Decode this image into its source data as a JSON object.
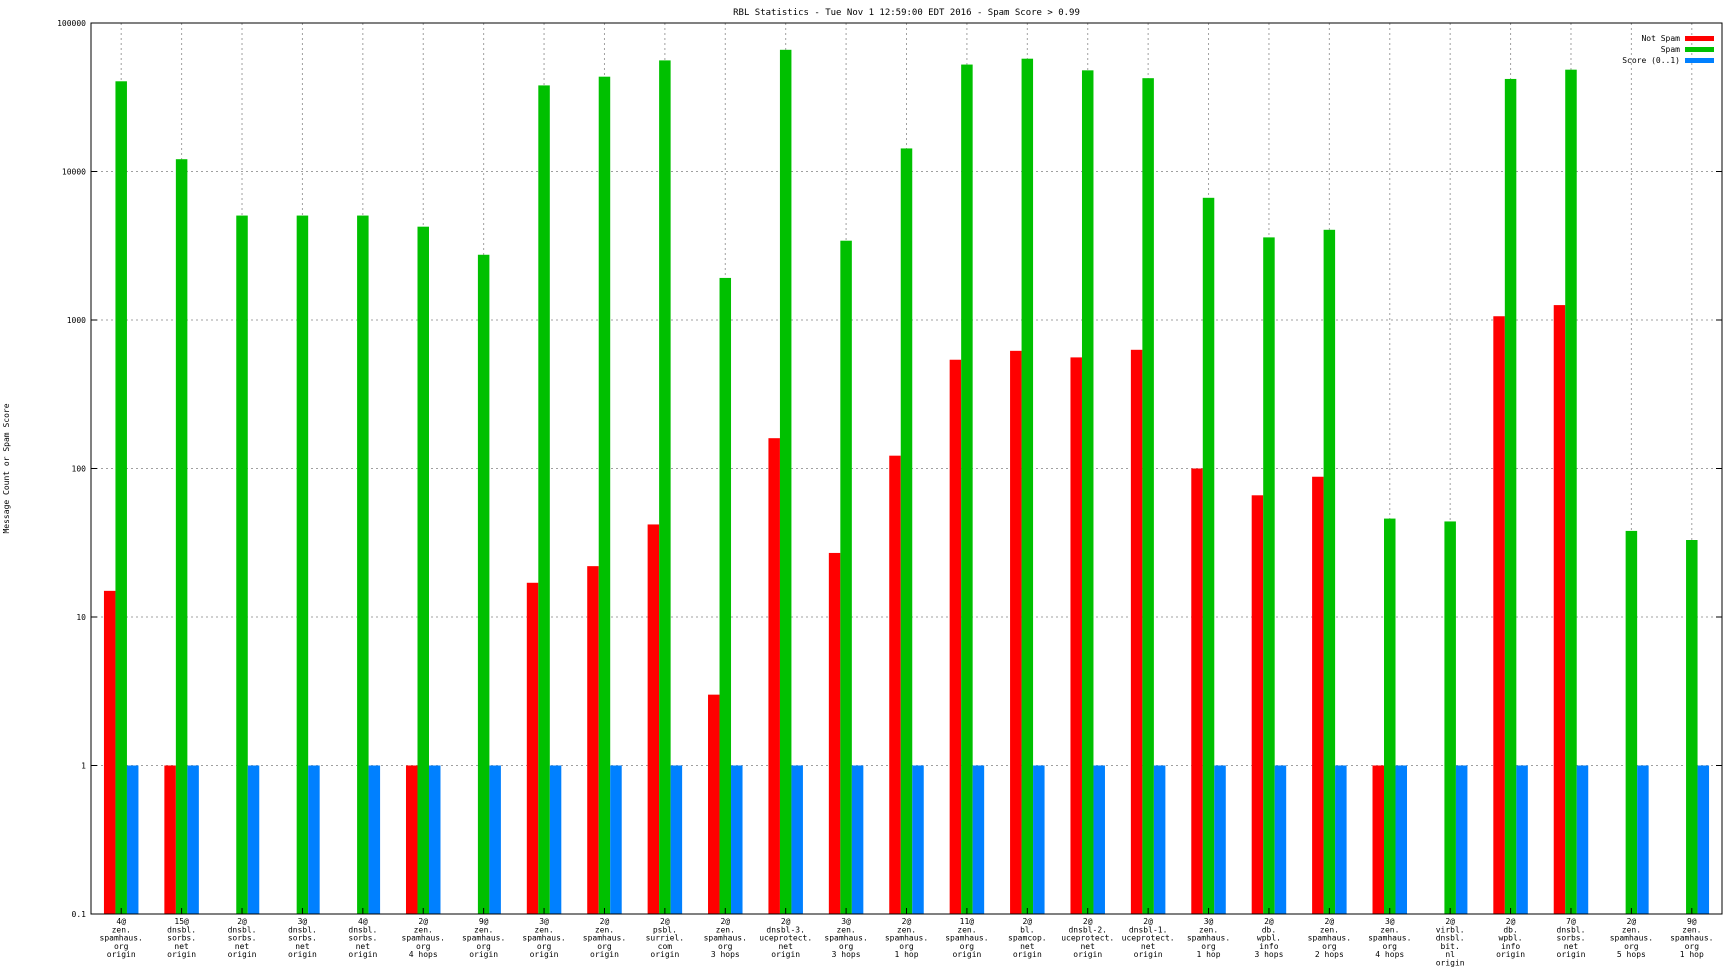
{
  "chart_data": {
    "type": "bar",
    "title": "RBL Statistics - Tue Nov  1 12:59:00 EDT 2016 - Spam Score > 0.99",
    "xlabel": "",
    "ylabel": "Message Count or Spam Score",
    "yscale": "log",
    "ylim": [
      0.1,
      100000
    ],
    "yticks": [
      "0.1",
      "1",
      "10",
      "100",
      "1000",
      "10000",
      "100000"
    ],
    "grid": true,
    "legend_position": "top-right",
    "categories": [
      [
        "4@",
        "zen.",
        "spamhaus.",
        "org",
        "origin"
      ],
      [
        "15@",
        "dnsbl.",
        "sorbs.",
        "net",
        "origin"
      ],
      [
        "2@",
        "dnsbl.",
        "sorbs.",
        "net",
        "origin"
      ],
      [
        "3@",
        "dnsbl.",
        "sorbs.",
        "net",
        "origin"
      ],
      [
        "4@",
        "dnsbl.",
        "sorbs.",
        "net",
        "origin"
      ],
      [
        "2@",
        "zen.",
        "spamhaus.",
        "org",
        "4 hops"
      ],
      [
        "9@",
        "zen.",
        "spamhaus.",
        "org",
        "origin"
      ],
      [
        "3@",
        "zen.",
        "spamhaus.",
        "org",
        "origin"
      ],
      [
        "2@",
        "zen.",
        "spamhaus.",
        "org",
        "origin"
      ],
      [
        "2@",
        "psbl.",
        "surriel.",
        "com",
        "origin"
      ],
      [
        "2@",
        "zen.",
        "spamhaus.",
        "org",
        "3 hops"
      ],
      [
        "2@",
        "dnsbl-3.",
        "uceprotect.",
        "net",
        "origin"
      ],
      [
        "3@",
        "zen.",
        "spamhaus.",
        "org",
        "3 hops"
      ],
      [
        "2@",
        "zen.",
        "spamhaus.",
        "org",
        "1 hop"
      ],
      [
        "11@",
        "zen.",
        "spamhaus.",
        "org",
        "origin"
      ],
      [
        "2@",
        "bl.",
        "spamcop.",
        "net",
        "origin"
      ],
      [
        "2@",
        "dnsbl-2.",
        "uceprotect.",
        "net",
        "origin"
      ],
      [
        "2@",
        "dnsbl-1.",
        "uceprotect.",
        "net",
        "origin"
      ],
      [
        "3@",
        "zen.",
        "spamhaus.",
        "org",
        "1 hop"
      ],
      [
        "2@",
        "db.",
        "wpbl.",
        "info",
        "3 hops"
      ],
      [
        "2@",
        "zen.",
        "spamhaus.",
        "org",
        "2 hops"
      ],
      [
        "3@",
        "zen.",
        "spamhaus.",
        "org",
        "4 hops"
      ],
      [
        "2@",
        "virbl.",
        "dnsbl.",
        "bit.",
        "nl",
        "origin"
      ],
      [
        "2@",
        "db.",
        "wpbl.",
        "info",
        "origin"
      ],
      [
        "7@",
        "dnsbl.",
        "sorbs.",
        "net",
        "origin"
      ],
      [
        "2@",
        "zen.",
        "spamhaus.",
        "org",
        "5 hops"
      ],
      [
        "9@",
        "zen.",
        "spamhaus.",
        "org",
        "1 hop"
      ]
    ],
    "series": [
      {
        "name": "Not Spam",
        "color": "#ff0000",
        "values": [
          15,
          1,
          null,
          null,
          null,
          1,
          null,
          17,
          22,
          42,
          3,
          160,
          27,
          122,
          540,
          620,
          560,
          630,
          100,
          66,
          88,
          1,
          null,
          1060,
          1260,
          null,
          null
        ]
      },
      {
        "name": "Spam",
        "color": "#00c000",
        "values": [
          40500,
          12100,
          5050,
          5050,
          5050,
          4250,
          2750,
          38000,
          43500,
          56000,
          1920,
          66000,
          3420,
          14300,
          52500,
          57500,
          48000,
          42500,
          6650,
          3600,
          4050,
          46,
          44,
          42000,
          48500,
          38,
          33
        ]
      },
      {
        "name": "Score (0..1)",
        "color": "#0080ff",
        "values": [
          1,
          1,
          1,
          1,
          1,
          1,
          1,
          1,
          1,
          1,
          1,
          1,
          1,
          1,
          1,
          1,
          1,
          1,
          1,
          1,
          1,
          1,
          1,
          1,
          1,
          1,
          1
        ]
      }
    ]
  }
}
